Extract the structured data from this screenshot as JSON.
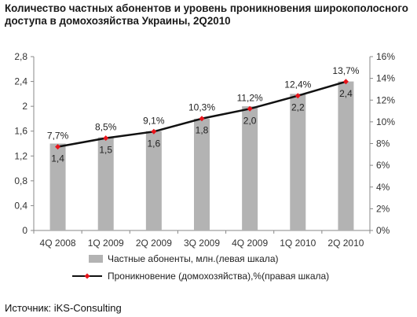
{
  "chart_data": {
    "type": "bar+line",
    "title": "Количество частных абонентов и уровень проникновения широкополосного доступа в домохозяйства Украины, 2Q2010",
    "categories": [
      "4Q 2008",
      "1Q 2009",
      "2Q 2009",
      "3Q 2009",
      "4Q 2009",
      "1Q 2010",
      "2Q 2010"
    ],
    "series": [
      {
        "name": "Частные абоненты, млн.(левая шкала)",
        "type": "bar",
        "axis": "left",
        "values": [
          1.4,
          1.5,
          1.6,
          1.8,
          2.0,
          2.2,
          2.4
        ],
        "labels": [
          "1,4",
          "1,5",
          "1,6",
          "1,8",
          "2,0",
          "2,2",
          "2,4"
        ],
        "color": "#b3b3b3"
      },
      {
        "name": "Проникновение (домохозяйства),%(правая шкала)",
        "type": "line",
        "axis": "right",
        "values": [
          7.7,
          8.5,
          9.1,
          10.3,
          11.2,
          12.4,
          13.7
        ],
        "labels": [
          "7,7%",
          "8,5%",
          "9,1%",
          "10,3%",
          "11,2%",
          "12,4%",
          "13,7%"
        ],
        "line_color": "#111111",
        "marker_color": "#e8141b"
      }
    ],
    "y_left": {
      "range": [
        0,
        2.8
      ],
      "ticks": [
        0,
        0.4,
        0.8,
        1.2,
        1.6,
        2,
        2.4,
        2.8
      ],
      "tick_labels": [
        "0",
        "0,4",
        "0,8",
        "1,2",
        "1,6",
        "2",
        "2,4",
        "2,8"
      ]
    },
    "y_right": {
      "range": [
        0,
        16
      ],
      "ticks": [
        0,
        2,
        4,
        6,
        8,
        10,
        12,
        14,
        16
      ],
      "tick_labels": [
        "0%",
        "2%",
        "4%",
        "6%",
        "8%",
        "10%",
        "12%",
        "14%",
        "16%"
      ]
    },
    "grid": false,
    "legend_position": "bottom"
  },
  "source": "Источник: iKS-Consulting"
}
